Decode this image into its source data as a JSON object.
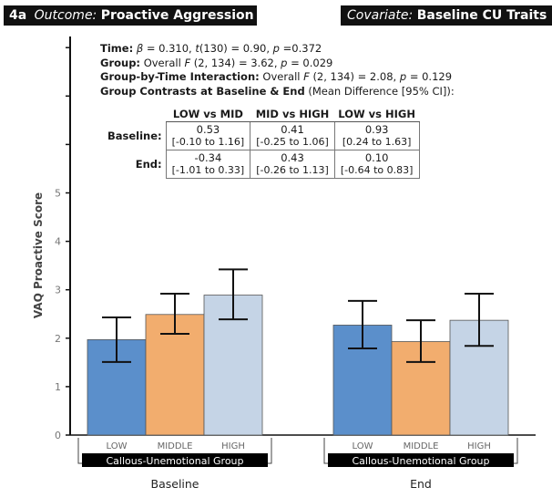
{
  "header": {
    "left_key": "4a",
    "left_label": "Outcome:",
    "left_value": "Proactive Aggression",
    "right_label": "Covariate:",
    "right_value": "Baseline CU Traits"
  },
  "stats": {
    "time": {
      "label": "Time:",
      "beta_sym": "β",
      "beta": "= 0.310,",
      "t_sym": "t",
      "t": "(130) = 0.90,",
      "p_sym": "p",
      "p": "=0.372"
    },
    "group": {
      "label": "Group:",
      "overall": "Overall",
      "f_sym": "F",
      "f": "(2, 134) = 3.62,",
      "p_sym": "p",
      "p": "= 0.029"
    },
    "interaction": {
      "label": "Group-by-Time Interaction:",
      "overall": "Overall",
      "f_sym": "F",
      "f": "(2, 134) = 2.08,",
      "p_sym": "p",
      "p": "= 0.129"
    },
    "contrasts_heading": "Group Contrasts at Baseline & End",
    "contrasts_note": "(Mean Difference [95% CI]):"
  },
  "contrast_table": {
    "columns": [
      "LOW vs MID",
      "MID vs HIGH",
      "LOW vs HIGH"
    ],
    "rows": [
      {
        "label": "Baseline:",
        "cells": [
          {
            "mean": "0.53",
            "ci": "[-0.10 to 1.16]"
          },
          {
            "mean": "0.41",
            "ci": "[-0.25 to 1.06]"
          },
          {
            "mean": "0.93",
            "ci": "[0.24 to 1.63]"
          }
        ]
      },
      {
        "label": "End:",
        "cells": [
          {
            "mean": "-0.34",
            "ci": "[-1.01 to 0.33]"
          },
          {
            "mean": "0.43",
            "ci": "[-0.26 to 1.13]"
          },
          {
            "mean": "0.10",
            "ci": "[-0.64 to 0.83]"
          }
        ]
      }
    ]
  },
  "chart_data": {
    "type": "bar",
    "ylabel": "VAQ Proactive Score",
    "ylim": [
      0,
      8
    ],
    "yticks": [
      "0",
      "1",
      "2",
      "3",
      "4",
      "5"
    ],
    "group_axis_label": "Callous-Unemotional Group",
    "categories": [
      "LOW",
      "MIDDLE",
      "HIGH"
    ],
    "colors": {
      "LOW": "#5b8fcb",
      "MIDDLE": "#f2ad6e",
      "HIGH": "#c5d4e6"
    },
    "groups": [
      {
        "time": "Baseline",
        "values": [
          1.97,
          2.49,
          2.89
        ],
        "err_low": [
          1.51,
          2.09,
          2.39
        ],
        "err_high": [
          2.43,
          2.92,
          3.42
        ]
      },
      {
        "time": "End",
        "values": [
          2.27,
          1.93,
          2.37
        ],
        "err_low": [
          1.79,
          1.51,
          1.84
        ],
        "err_high": [
          2.77,
          2.37,
          2.92
        ]
      }
    ]
  }
}
